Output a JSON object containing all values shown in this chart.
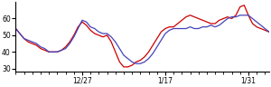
{
  "red_y": [
    54,
    51,
    48,
    46,
    45,
    44,
    42,
    41,
    40,
    40,
    40,
    41,
    43,
    46,
    50,
    55,
    58,
    56,
    53,
    51,
    50,
    49,
    50,
    46,
    40,
    34,
    31,
    31,
    32,
    34,
    35,
    37,
    40,
    44,
    48,
    52,
    54,
    55,
    55,
    57,
    59,
    61,
    62,
    61,
    60,
    59,
    58,
    57,
    57,
    59,
    60,
    61,
    60,
    62,
    67,
    68,
    62,
    57,
    55,
    54,
    53,
    52
  ],
  "blue_y": [
    54,
    51,
    48,
    47,
    46,
    45,
    43,
    42,
    40,
    40,
    40,
    41,
    42,
    45,
    49,
    54,
    59,
    58,
    55,
    54,
    52,
    51,
    51,
    49,
    46,
    42,
    38,
    36,
    34,
    33,
    33,
    34,
    36,
    39,
    43,
    47,
    51,
    53,
    54,
    54,
    54,
    54,
    55,
    54,
    54,
    55,
    55,
    56,
    55,
    56,
    58,
    60,
    61,
    61,
    62,
    62,
    62,
    60,
    58,
    56,
    54,
    52
  ],
  "ylim": [
    28,
    70
  ],
  "yticks": [
    30,
    40,
    50,
    60
  ],
  "n_points": 62,
  "xtick_label_12_27": "12/27",
  "xtick_label_1_17": "1/17",
  "xtick_label_1_31": "1/31",
  "xtick_pos_12_27": 16,
  "xtick_pos_1_17": 36,
  "xtick_pos_1_31": 56,
  "red_color": "#cc0000",
  "blue_color": "#4444bb",
  "bg_color": "#ffffff",
  "linewidth": 0.9
}
